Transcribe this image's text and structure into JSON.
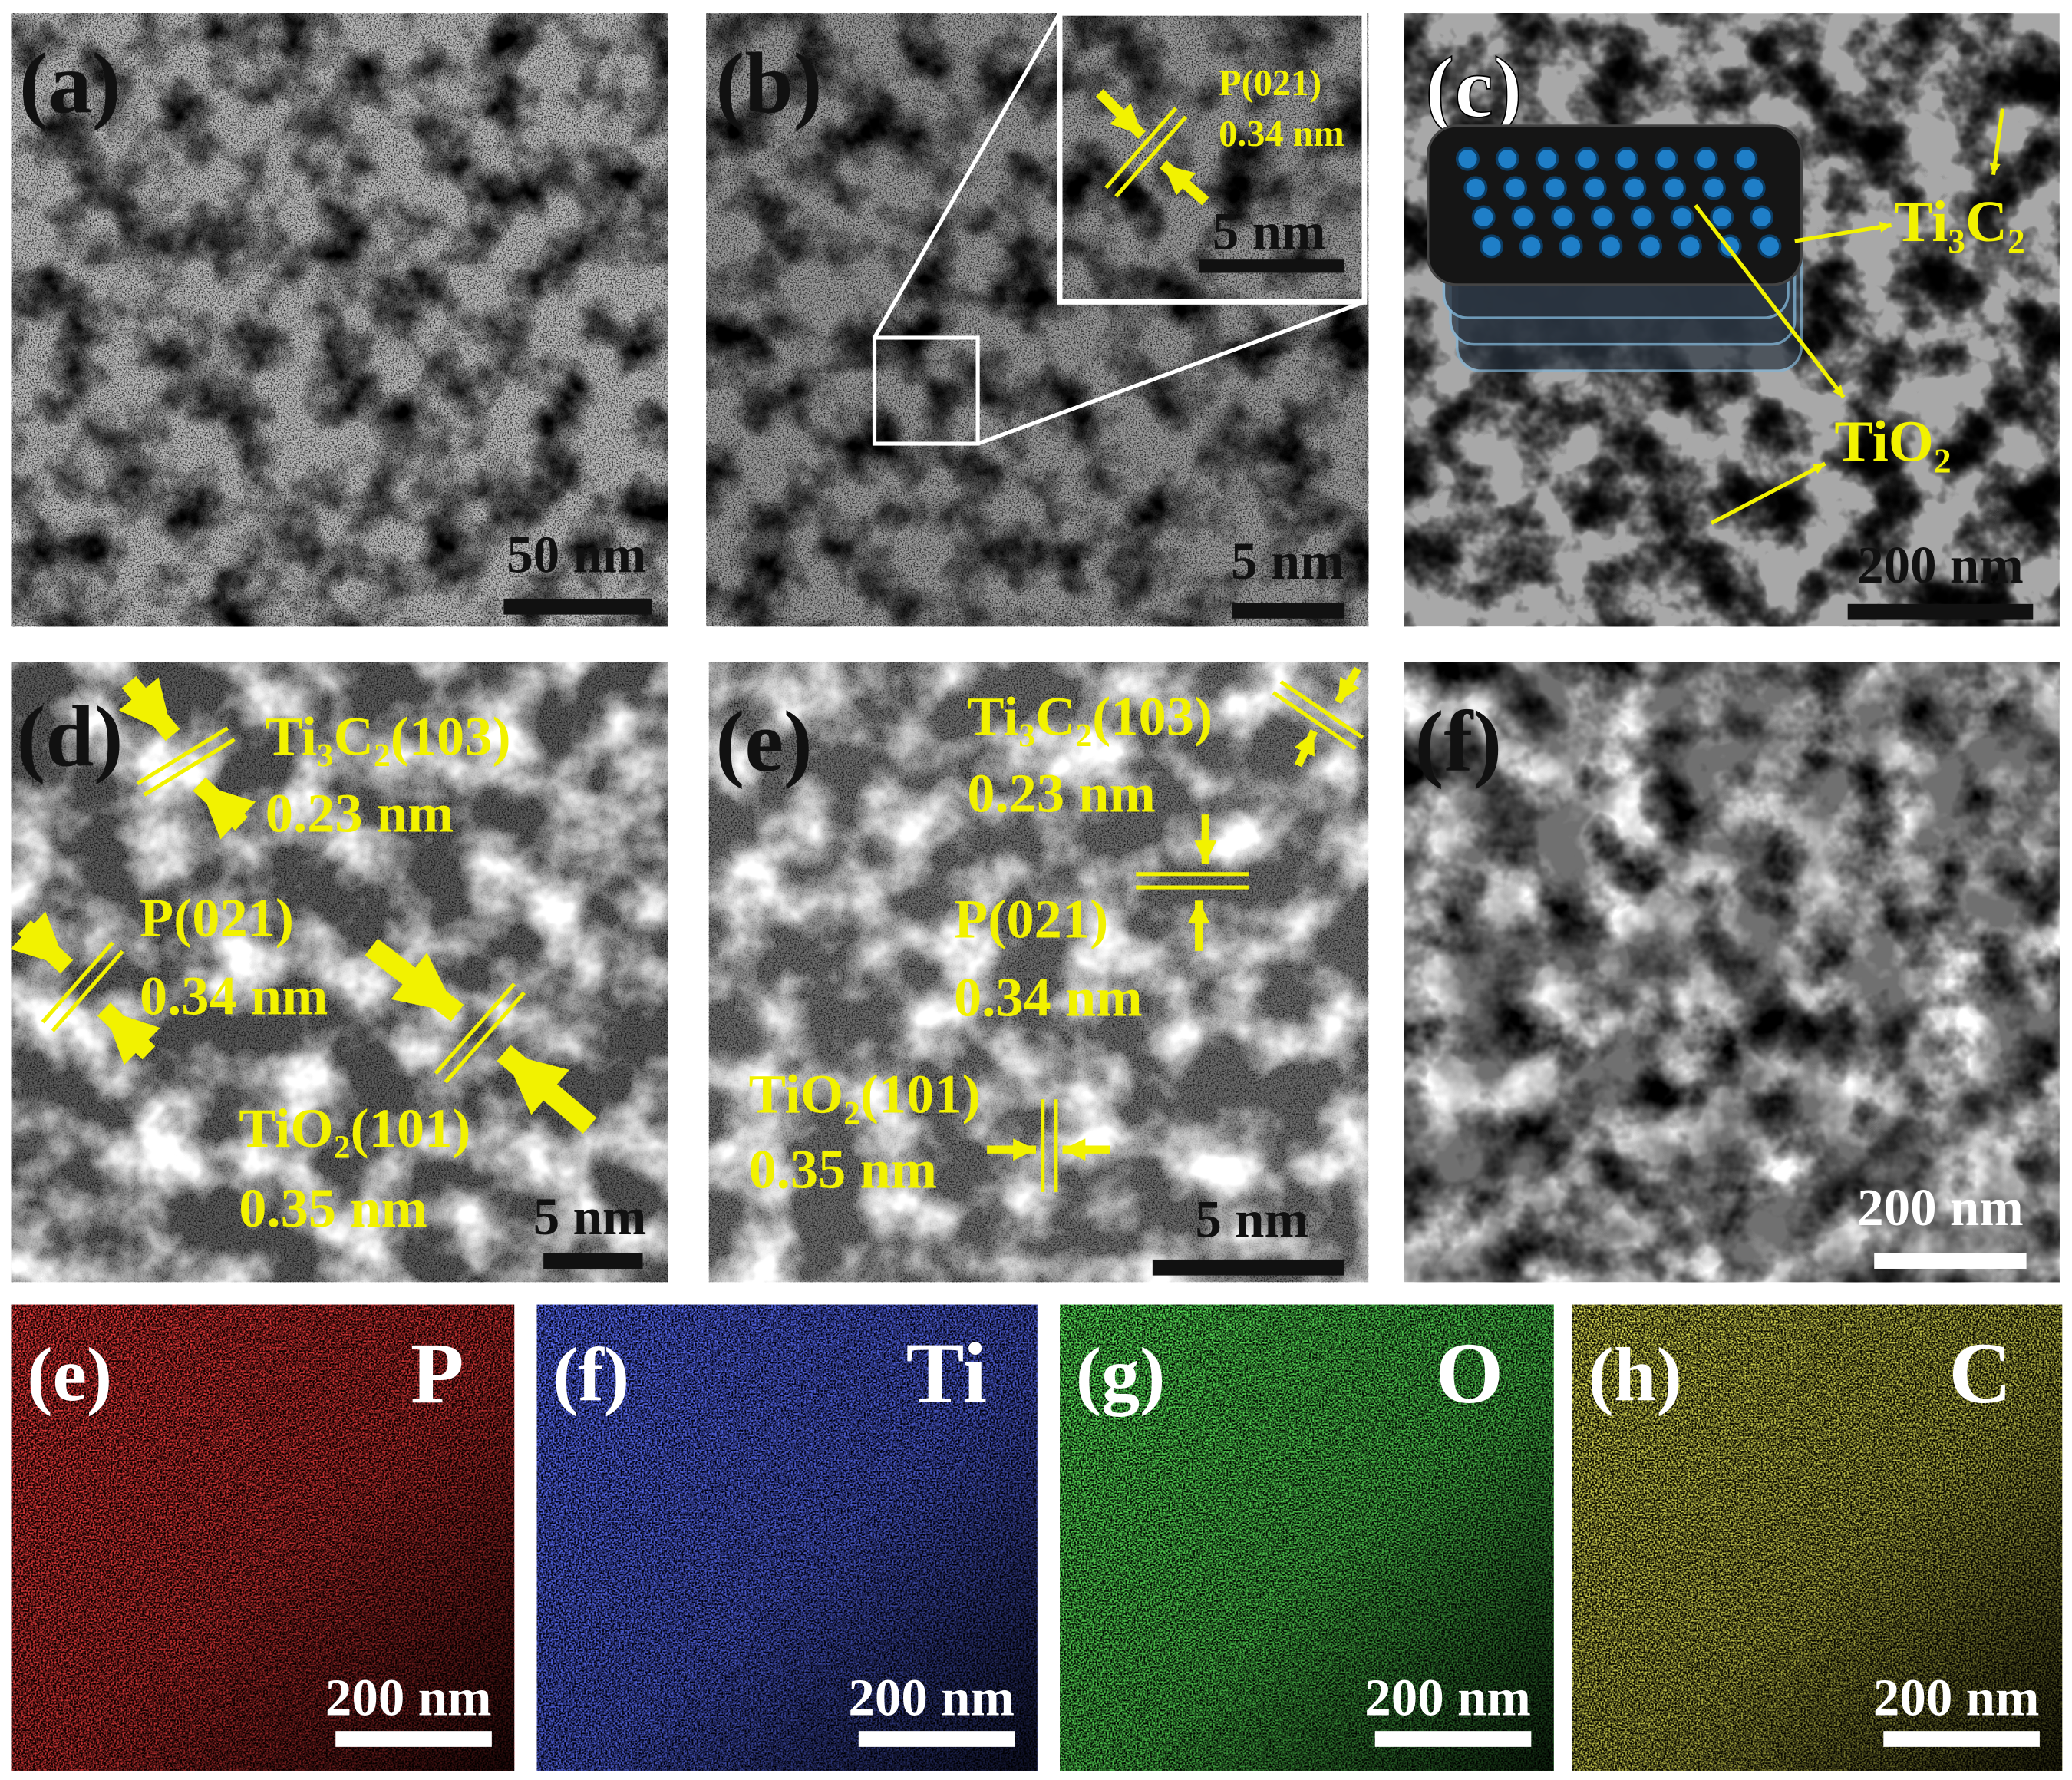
{
  "panels": [
    {
      "label": "(a)",
      "scale_bar": "50 nm",
      "annotations": []
    },
    {
      "label": "(b)",
      "scale_bar": "5 nm",
      "annotations": [
        "P(021)",
        "0.34 nm",
        "5 nm"
      ]
    },
    {
      "label": "(c)",
      "scale_bar": "200 nm",
      "annotations": [
        "Ti₃C₂",
        "TiO₂"
      ]
    },
    {
      "label": "(d)",
      "scale_bar": "5 nm",
      "annotations": [
        "Ti₃C₂(103)",
        "0.23 nm",
        "P(021)",
        "0.34 nm",
        "TiO₂(101)",
        "0.35 nm"
      ]
    },
    {
      "label": "(e)",
      "scale_bar": "5 nm",
      "annotations": [
        "Ti₃C₂(103)",
        "0.23 nm",
        "P(021)",
        "0.34 nm",
        "TiO₂(101)",
        "0.35 nm"
      ]
    },
    {
      "label": "(f)",
      "scale_bar": "200 nm",
      "annotations": []
    },
    {
      "label": "(e)",
      "element": "P",
      "scale_bar": "200 nm",
      "annotations": []
    },
    {
      "label": "(f)",
      "element": "Ti",
      "scale_bar": "200 nm",
      "annotations": []
    },
    {
      "label": "(g)",
      "element": "O",
      "scale_bar": "200 nm",
      "annotations": []
    },
    {
      "label": "(h)",
      "element": "C",
      "scale_bar": "200 nm",
      "annotations": []
    }
  ]
}
